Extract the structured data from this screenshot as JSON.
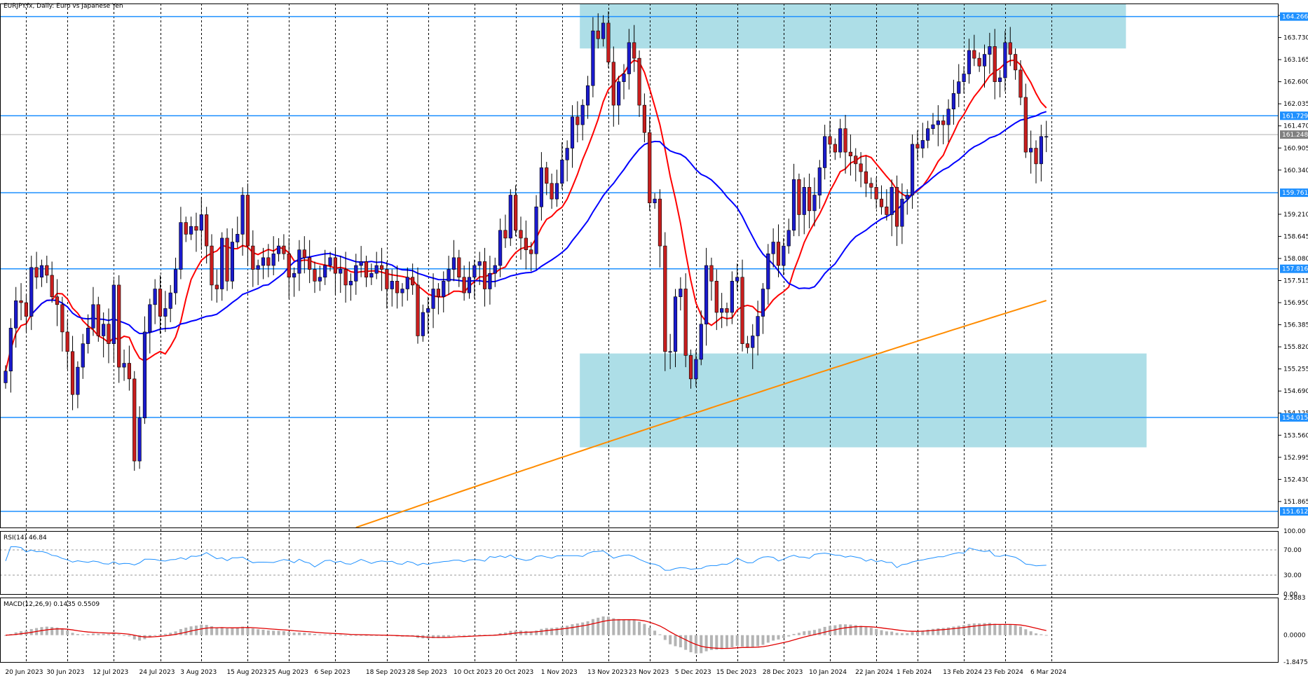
{
  "symbol_label": "EURJPY.fx, Daily:  Euro vs Japanese Yen",
  "chart_data": {
    "type": "candlestick",
    "title": "EURJPY.fx, Daily:  Euro vs Japanese Yen",
    "colors": {
      "bull": "#1a1acc",
      "bear": "#c81e1e",
      "grid": "#000000",
      "ma_fast": "#ff0000",
      "ma_slow": "#0000ff",
      "ma_long": "#ff8c00",
      "hline": "#1e90ff",
      "zone": "#9fd8e3",
      "rsi": "#1e90ff",
      "macd_hist": "#b4b4b4",
      "macd_signal": "#e00000",
      "label_box": "#1e90ff",
      "price_box": "#808080"
    },
    "price_axis": {
      "range": [
        151.2,
        164.6
      ],
      "ticks": [
        "164.295",
        "163.730",
        "163.165",
        "162.600",
        "162.035",
        "161.470",
        "160.905",
        "160.340",
        "159.210",
        "158.645",
        "158.080",
        "157.515",
        "156.950",
        "156.385",
        "155.820",
        "155.255",
        "154.690",
        "154.125",
        "153.560",
        "152.995",
        "152.430",
        "151.865"
      ]
    },
    "horizontal_lines": [
      {
        "price": 164.266,
        "label": "164.266"
      },
      {
        "price": 161.729,
        "label": "161.729"
      },
      {
        "price": 159.761,
        "label": "159.761"
      },
      {
        "price": 157.816,
        "label": "157.816"
      },
      {
        "price": 154.015,
        "label": "154.015"
      },
      {
        "price": 151.612,
        "label": "151.612"
      }
    ],
    "current_price": {
      "price": 161.248,
      "label": "161.248"
    },
    "zones": [
      {
        "from_index": 112,
        "to_index": 218,
        "top": 164.6,
        "bottom": 163.45
      },
      {
        "from_index": 112,
        "to_index": 222,
        "top": 155.65,
        "bottom": 153.25
      }
    ],
    "date_labels": [
      {
        "index": 4,
        "label": "20 Jun 2023"
      },
      {
        "index": 12,
        "label": "30 Jun 2023"
      },
      {
        "index": 21,
        "label": "12 Jul 2023"
      },
      {
        "index": 30,
        "label": "24 Jul 2023"
      },
      {
        "index": 38,
        "label": "3 Aug 2023"
      },
      {
        "index": 47,
        "label": "15 Aug 2023"
      },
      {
        "index": 55,
        "label": "25 Aug 2023"
      },
      {
        "index": 64,
        "label": "6 Sep 2023"
      },
      {
        "index": 74,
        "label": "18 Sep 2023"
      },
      {
        "index": 82,
        "label": "28 Sep 2023"
      },
      {
        "index": 91,
        "label": "10 Oct 2023"
      },
      {
        "index": 99,
        "label": "20 Oct 2023"
      },
      {
        "index": 108,
        "label": "1 Nov 2023"
      },
      {
        "index": 117,
        "label": "13 Nov 2023"
      },
      {
        "index": 125,
        "label": "23 Nov 2023"
      },
      {
        "index": 134,
        "label": "5 Dec 2023"
      },
      {
        "index": 142,
        "label": "15 Dec 2023"
      },
      {
        "index": 151,
        "label": "28 Dec 2023"
      },
      {
        "index": 160,
        "label": "10 Jan 2024"
      },
      {
        "index": 169,
        "label": "22 Jan 2024"
      },
      {
        "index": 177,
        "label": "1 Feb 2024"
      },
      {
        "index": 186,
        "label": "13 Feb 2024"
      },
      {
        "index": 194,
        "label": "23 Feb 2024"
      },
      {
        "index": 203,
        "label": "6 Mar 2024"
      }
    ],
    "closes": [
      155.2,
      156.3,
      157.0,
      156.95,
      156.6,
      157.85,
      157.6,
      157.9,
      157.65,
      157.1,
      156.9,
      156.2,
      155.7,
      154.6,
      155.3,
      155.9,
      156.3,
      156.9,
      156.1,
      156.4,
      155.9,
      157.4,
      155.3,
      155.4,
      155.0,
      152.9,
      154.0,
      156.2,
      156.9,
      157.3,
      156.6,
      156.8,
      157.2,
      157.8,
      159.0,
      158.7,
      158.9,
      158.8,
      159.2,
      158.4,
      157.4,
      157.3,
      158.6,
      157.5,
      158.5,
      158.7,
      159.7,
      158.4,
      157.8,
      157.9,
      158.1,
      157.9,
      158.2,
      158.4,
      158.2,
      157.6,
      157.7,
      158.3,
      158.1,
      157.8,
      157.5,
      157.6,
      157.9,
      158.1,
      157.7,
      157.8,
      157.4,
      157.5,
      157.9,
      158.0,
      157.6,
      157.7,
      157.9,
      157.8,
      157.3,
      157.5,
      157.2,
      157.3,
      157.6,
      157.4,
      156.1,
      156.7,
      156.8,
      157.3,
      157.1,
      157.5,
      157.8,
      158.1,
      157.6,
      157.2,
      157.6,
      157.9,
      158.0,
      157.3,
      157.7,
      157.9,
      158.8,
      158.6,
      159.7,
      158.8,
      158.6,
      158.3,
      158.2,
      159.4,
      160.4,
      160.0,
      159.6,
      160.0,
      160.6,
      160.9,
      161.7,
      161.5,
      162.0,
      162.5,
      163.9,
      163.7,
      164.1,
      163.1,
      162.0,
      162.6,
      162.8,
      163.6,
      163.2,
      162.0,
      161.3,
      159.5,
      159.6,
      158.4,
      155.7,
      155.7,
      157.1,
      157.3,
      155.6,
      155.0,
      155.5,
      156.4,
      157.9,
      157.5,
      156.7,
      156.8,
      156.7,
      157.5,
      157.6,
      155.9,
      155.8,
      156.1,
      156.6,
      157.3,
      158.2,
      158.5,
      157.9,
      158.4,
      158.8,
      160.1,
      159.2,
      159.9,
      159.3,
      159.7,
      160.4,
      161.2,
      161.0,
      160.8,
      161.4,
      160.8,
      160.7,
      160.5,
      160.3,
      160.0,
      159.9,
      159.6,
      159.4,
      159.2,
      159.9,
      158.9,
      159.6,
      159.7,
      161.0,
      160.9,
      161.1,
      161.4,
      161.5,
      161.6,
      161.5,
      161.9,
      162.3,
      162.6,
      162.8,
      163.4,
      163.2,
      163.0,
      163.3,
      163.5,
      162.6,
      162.7,
      163.6,
      163.3,
      162.9,
      162.2,
      160.8,
      160.9,
      160.5,
      161.2,
      161.2
    ]
  },
  "rsi": {
    "label": "RSI(14) 46.84",
    "levels": [
      "100.00",
      "70.00",
      "30.00",
      "0.00"
    ]
  },
  "macd": {
    "label": "MACD(12,26,9) 0.1435 0.5509",
    "levels": [
      "2.5883",
      "0.0000",
      "-1.8475"
    ]
  }
}
